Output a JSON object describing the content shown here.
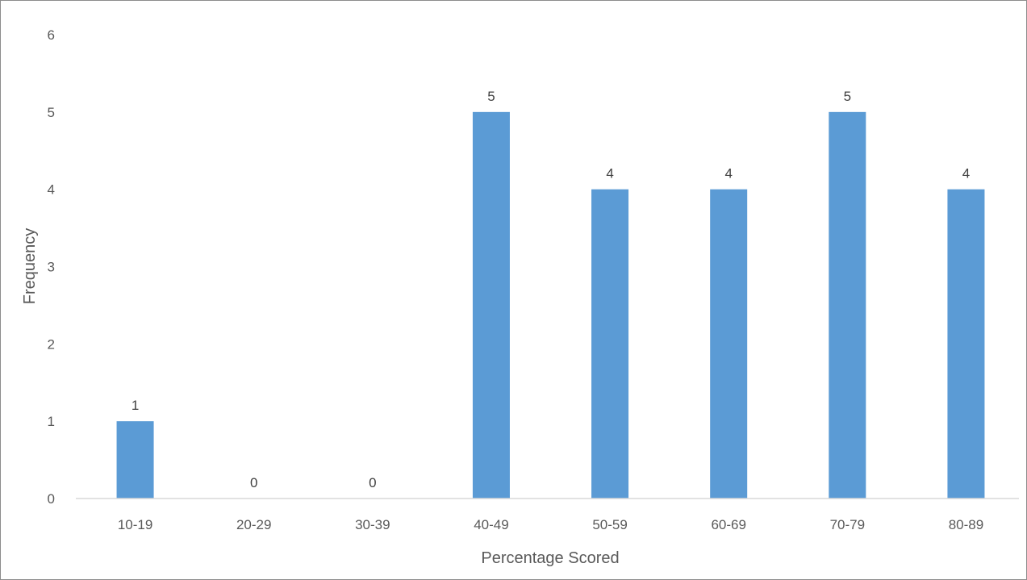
{
  "chart_data": {
    "type": "bar",
    "title": "",
    "xlabel": "Percentage Scored",
    "ylabel": "Frequency",
    "categories": [
      "10-19",
      "20-29",
      "30-39",
      "40-49",
      "50-59",
      "60-69",
      "70-79",
      "80-89"
    ],
    "values": [
      1,
      0,
      0,
      5,
      4,
      4,
      5,
      4
    ],
    "ylim": [
      0,
      6
    ],
    "yticks": [
      0,
      1,
      2,
      3,
      4,
      5,
      6
    ],
    "data_labels": true,
    "grid": false,
    "legend": "none",
    "bar_color": "#5b9bd5",
    "axis_color": "#d9d9d9"
  }
}
